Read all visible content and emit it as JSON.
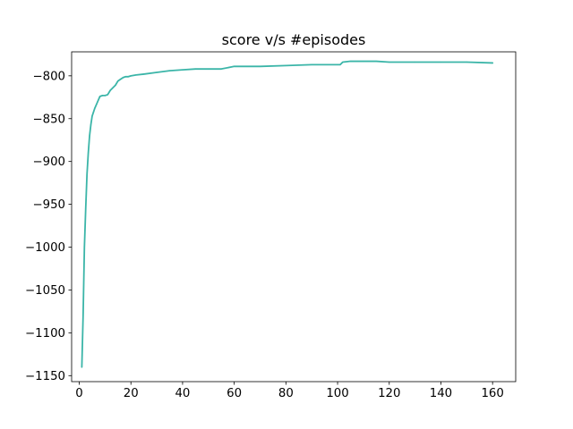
{
  "chart_data": {
    "type": "line",
    "title": "score v/s #episodes",
    "xlabel": "",
    "ylabel": "",
    "xlim": [
      -2.95,
      168.95
    ],
    "ylim": [
      -1157,
      -772
    ],
    "xticks": [
      0,
      20,
      40,
      60,
      80,
      100,
      120,
      140,
      160
    ],
    "yticks": [
      -800,
      -850,
      -900,
      -950,
      -1000,
      -1050,
      -1100,
      -1150
    ],
    "xtick_labels": [
      "0",
      "20",
      "40",
      "60",
      "80",
      "100",
      "120",
      "140",
      "160"
    ],
    "ytick_labels": [
      "−800",
      "−850",
      "−900",
      "−950",
      "−1000",
      "−1050",
      "−1100",
      "−1150"
    ],
    "grid": false,
    "series": [
      {
        "color": "#3bb5a8",
        "x": [
          1,
          1.5,
          2,
          2.5,
          3,
          3.5,
          4,
          4.5,
          5,
          6,
          7,
          8,
          9,
          10,
          11,
          12,
          13,
          14,
          15,
          16,
          17,
          18,
          19,
          20,
          22,
          25,
          30,
          35,
          40,
          45,
          50,
          55,
          60,
          65,
          70,
          80,
          90,
          100,
          101,
          102,
          105,
          110,
          115,
          120,
          130,
          140,
          150,
          160
        ],
        "y": [
          -1140,
          -1080,
          -1000,
          -955,
          -915,
          -890,
          -870,
          -857,
          -847,
          -838,
          -831,
          -824,
          -823,
          -823,
          -822,
          -817,
          -814,
          -811,
          -806,
          -804,
          -802,
          -801,
          -801,
          -800,
          -799,
          -798,
          -796,
          -794,
          -793,
          -792,
          -792,
          -792,
          -789,
          -789,
          -789,
          -788,
          -787,
          -787,
          -787,
          -784,
          -783,
          -783,
          -783,
          -784,
          -784,
          -784,
          -784,
          -785
        ]
      }
    ]
  }
}
